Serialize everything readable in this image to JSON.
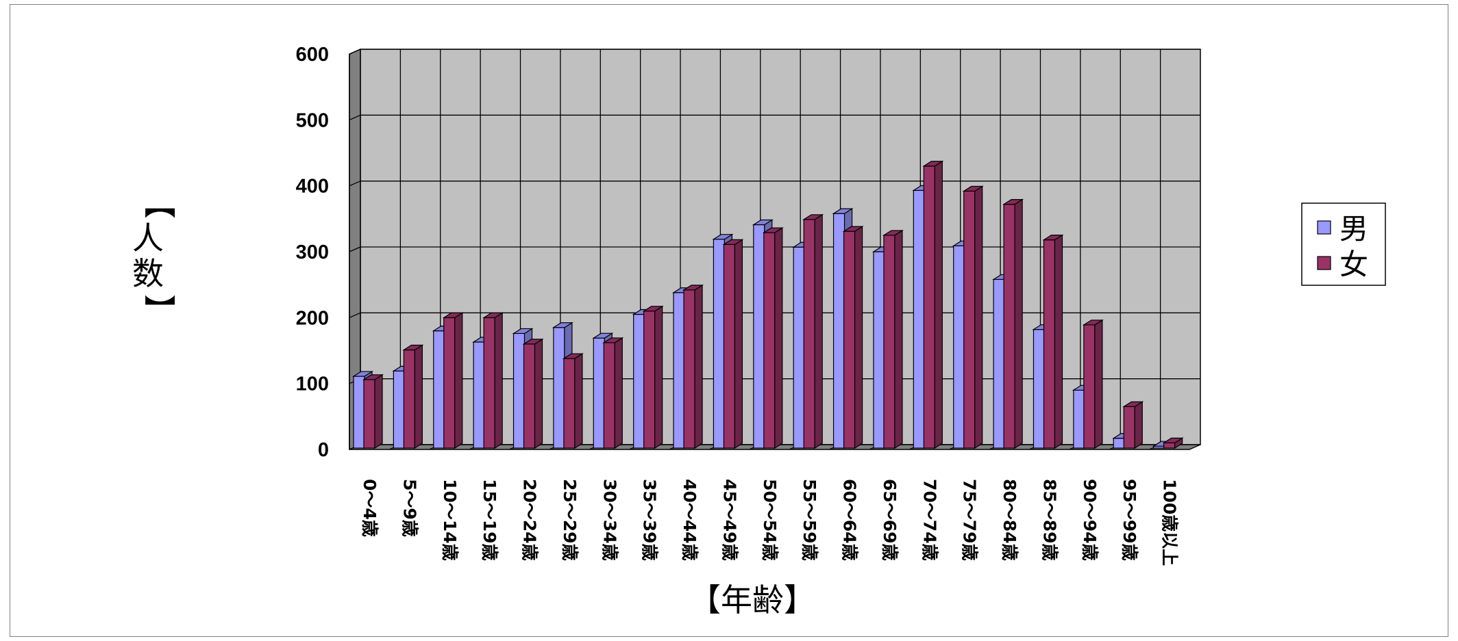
{
  "chart_data": {
    "type": "bar",
    "style": "3d-clustered-column",
    "categories": [
      "0～4歳",
      "5～9歳",
      "10～14歳",
      "15～19歳",
      "20～24歳",
      "25～29歳",
      "30～34歳",
      "35～39歳",
      "40～44歳",
      "45～49歳",
      "50～54歳",
      "55～59歳",
      "60～64歳",
      "65～69歳",
      "70～74歳",
      "75～79歳",
      "80～84歳",
      "85～89歳",
      "90～94歳",
      "95～99歳",
      "100歳以上"
    ],
    "series": [
      {
        "name": "男",
        "color": "#9999ff",
        "values": [
          111,
          119,
          180,
          163,
          176,
          185,
          169,
          205,
          238,
          319,
          341,
          307,
          358,
          300,
          393,
          309,
          258,
          182,
          90,
          17,
          5
        ]
      },
      {
        "name": "女",
        "color": "#993366",
        "values": [
          106,
          151,
          200,
          200,
          160,
          138,
          162,
          210,
          242,
          311,
          329,
          349,
          331,
          325,
          430,
          392,
          372,
          318,
          189,
          65,
          10
        ]
      }
    ],
    "xlabel": "【年齢】",
    "ylabel": "【人数】",
    "ylim": [
      0,
      600
    ],
    "yticks": [
      0,
      100,
      200,
      300,
      400,
      500,
      600
    ],
    "grid": true,
    "legend_position": "right",
    "colors": {
      "wall": "#c0c0c0",
      "floor": "#808080",
      "side_wall": "#808080"
    }
  }
}
